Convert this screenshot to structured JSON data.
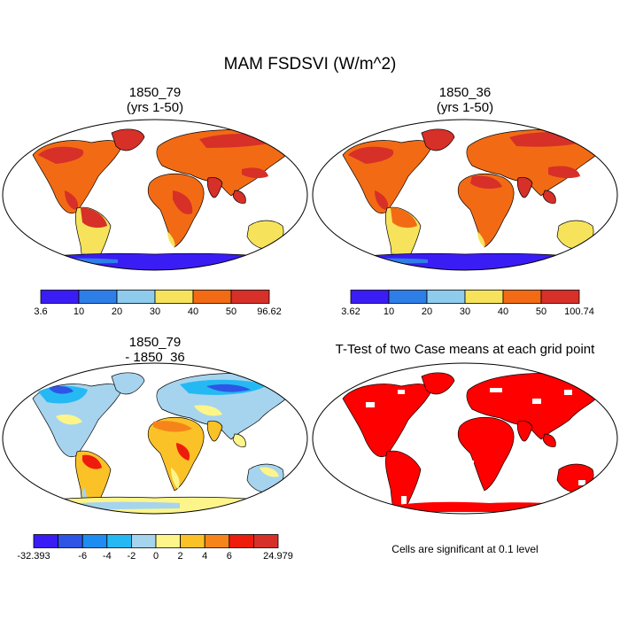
{
  "figure": {
    "title": "MAM FSDSVI (W/m^2)"
  },
  "panels": [
    {
      "id": "case1",
      "title_line1": "1850_79",
      "title_line2": "(yrs 1-50)",
      "colorbar": {
        "colors": [
          "#3a1df5",
          "#2e7ee8",
          "#8ecbec",
          "#f6e35b",
          "#f26b14",
          "#d73028"
        ],
        "labels": [
          "3.6",
          "10",
          "20",
          "30",
          "40",
          "50",
          "96.62"
        ]
      }
    },
    {
      "id": "case2",
      "title_line1": "1850_36",
      "title_line2": "(yrs 1-50)",
      "colorbar": {
        "colors": [
          "#3a1df5",
          "#2e7ee8",
          "#8ecbec",
          "#f6e35b",
          "#f26b14",
          "#d73028"
        ],
        "labels": [
          "3.62",
          "10",
          "20",
          "30",
          "40",
          "50",
          "100.74"
        ]
      }
    },
    {
      "id": "difference",
      "title_line1": "1850_79",
      "title_line2": "- 1850_36",
      "colorbar": {
        "colors": [
          "#3a1df5",
          "#2e55e6",
          "#1e8cf0",
          "#25b9f3",
          "#a6d4ee",
          "#fdf58a",
          "#fbc228",
          "#f7841a",
          "#ee1c0c",
          "#d7302a"
        ],
        "labels": [
          "-32.393",
          "",
          "-6",
          "-4",
          "-2",
          "0",
          "2",
          "4",
          "6",
          "",
          "24.979"
        ]
      }
    },
    {
      "id": "ttest",
      "title_line1": "T-Test of two Case means at each grid point",
      "note": "Cells are significant at 0.1 level",
      "significant_color": "#ff0000"
    }
  ]
}
